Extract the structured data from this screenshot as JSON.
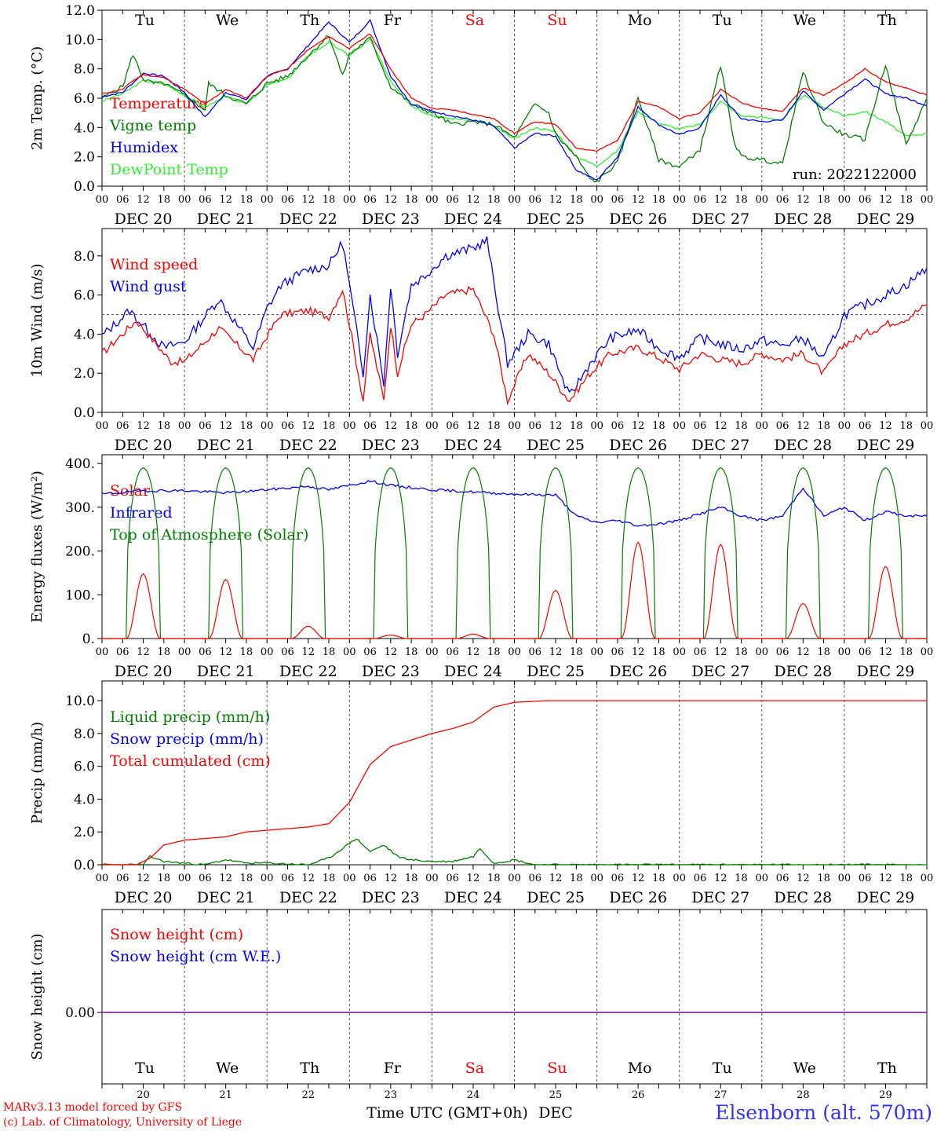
{
  "credits": [
    "MARv3.13 model forced by GFS",
    "(c) Lab. of Climatology, University of Liege"
  ],
  "station": "Elsenborn (alt. 570m)",
  "run_label": "run: 2022122000",
  "colors": {
    "red": "#ff0000",
    "green": "#008000",
    "blue": "#0000ff",
    "lightgreen": "#33ee33",
    "purple": "#8000a0",
    "weekend": "#ff0000"
  },
  "hour_ticks": [
    "00",
    "06",
    "12",
    "18"
  ],
  "last_tick": "00",
  "dates": [
    "DEC 20",
    "DEC 21",
    "DEC 22",
    "DEC 23",
    "DEC 24",
    "DEC 25",
    "DEC 26",
    "DEC 27",
    "DEC 28",
    "DEC 29"
  ],
  "days": [
    "Tu",
    "We",
    "Th",
    "Fr",
    "Sa",
    "Su",
    "Mo",
    "Tu",
    "We",
    "Th"
  ],
  "weekend_days": [
    "Sa",
    "Su"
  ],
  "bottom_day_numbers": [
    "20",
    "21",
    "22",
    "23",
    "24",
    "25",
    "26",
    "27",
    "28",
    "29"
  ],
  "bottom_xlabel": "Time UTC (GMT+0h)",
  "bottom_month": "DEC",
  "chart_data": [
    {
      "type": "line",
      "ylabel": "2m Temp. (°C)",
      "ylim": [
        0,
        12
      ],
      "yticks": [
        "0.0",
        "2.0",
        "4.0",
        "6.0",
        "8.0",
        "10.0",
        "12.0"
      ],
      "x_unit": "hours since Dec 20 00 UTC",
      "series": [
        {
          "name": "Temperature",
          "color": "red",
          "x": [
            0,
            6,
            9,
            12,
            18,
            24,
            30,
            36,
            42,
            48,
            54,
            60,
            66,
            72,
            78,
            84,
            90,
            96,
            102,
            108,
            114,
            120,
            126,
            132,
            138,
            144,
            150,
            156,
            162,
            168,
            174,
            180,
            186,
            192,
            198,
            204,
            210,
            216,
            222,
            228,
            234,
            240
          ],
          "values": [
            6.3,
            6.6,
            7.2,
            7.6,
            7.4,
            6.6,
            5.6,
            6.6,
            6.0,
            7.5,
            8.0,
            9.3,
            10.2,
            9.4,
            10.4,
            8.0,
            6.0,
            5.3,
            5.2,
            4.9,
            4.6,
            3.6,
            4.4,
            4.2,
            2.6,
            2.4,
            3.1,
            5.8,
            5.4,
            4.6,
            5.0,
            6.6,
            5.7,
            5.3,
            5.1,
            6.7,
            6.2,
            7.0,
            8.0,
            7.1,
            6.7,
            6.2
          ]
        },
        {
          "name": "Vigne temp",
          "color": "green",
          "x": [
            0,
            6,
            9,
            12,
            15,
            18,
            24,
            30,
            31,
            36,
            42,
            48,
            54,
            60,
            66,
            70,
            72,
            78,
            84,
            90,
            96,
            102,
            108,
            114,
            120,
            126,
            130,
            132,
            138,
            142,
            144,
            150,
            156,
            162,
            168,
            174,
            180,
            184,
            186,
            192,
            198,
            204,
            210,
            216,
            222,
            228,
            234,
            240
          ],
          "values": [
            6.0,
            6.8,
            9.0,
            7.3,
            7.0,
            7.0,
            6.2,
            5.2,
            7.0,
            6.2,
            5.6,
            7.0,
            7.5,
            8.9,
            10.3,
            7.5,
            9.0,
            10.1,
            6.8,
            5.6,
            5.0,
            4.2,
            4.4,
            4.2,
            3.3,
            5.6,
            5.0,
            3.5,
            2.0,
            0.5,
            0.3,
            1.6,
            6.0,
            1.8,
            1.3,
            2.5,
            8.2,
            3.0,
            2.0,
            1.8,
            1.5,
            7.8,
            4.3,
            3.5,
            3.2,
            8.3,
            2.8,
            6.0
          ]
        },
        {
          "name": "Humidex",
          "color": "blue",
          "x": [
            0,
            6,
            12,
            18,
            24,
            30,
            36,
            42,
            48,
            54,
            60,
            66,
            72,
            78,
            84,
            90,
            96,
            102,
            108,
            114,
            120,
            126,
            132,
            138,
            144,
            150,
            156,
            162,
            168,
            174,
            180,
            186,
            192,
            198,
            204,
            210,
            216,
            222,
            228,
            234,
            240
          ],
          "values": [
            6.1,
            6.4,
            7.7,
            7.5,
            6.4,
            4.7,
            6.4,
            5.9,
            7.5,
            8.0,
            9.6,
            11.2,
            9.8,
            11.3,
            7.5,
            5.6,
            5.1,
            4.8,
            4.5,
            4.1,
            2.6,
            3.6,
            3.4,
            1.1,
            0.4,
            2.0,
            5.4,
            4.2,
            3.5,
            4.0,
            6.2,
            4.6,
            4.4,
            4.5,
            6.5,
            5.2,
            6.3,
            7.3,
            6.3,
            6.0,
            5.5
          ]
        },
        {
          "name": "DewPoint Temp",
          "color": "lightgreen",
          "x": [
            0,
            6,
            12,
            18,
            24,
            30,
            36,
            42,
            48,
            54,
            60,
            66,
            72,
            78,
            84,
            90,
            96,
            102,
            108,
            114,
            120,
            126,
            132,
            138,
            144,
            150,
            156,
            162,
            168,
            174,
            180,
            186,
            192,
            198,
            204,
            210,
            216,
            222,
            228,
            234,
            240
          ],
          "values": [
            5.8,
            6.3,
            7.2,
            7.0,
            6.2,
            5.4,
            6.1,
            5.6,
            6.9,
            7.3,
            8.9,
            9.8,
            8.9,
            10.0,
            7.2,
            5.5,
            4.8,
            4.6,
            4.5,
            4.1,
            3.2,
            4.0,
            3.7,
            2.0,
            1.4,
            2.4,
            5.1,
            4.3,
            3.9,
            4.2,
            5.8,
            4.8,
            4.7,
            4.5,
            6.2,
            5.4,
            4.8,
            5.1,
            4.4,
            3.4,
            3.6
          ]
        }
      ]
    },
    {
      "type": "line",
      "ylabel": "10m Wind (m/s)",
      "ylim": [
        0,
        9
      ],
      "yticks": [
        "0.0",
        "2.0",
        "4.0",
        "6.0",
        "8.0"
      ],
      "ref_line": 5,
      "series": [
        {
          "name": "Wind speed",
          "color": "red",
          "x": [
            0,
            10,
            20,
            24,
            34,
            44,
            48,
            52,
            60,
            66,
            70,
            72,
            76,
            78,
            82,
            84,
            86,
            90,
            94,
            100,
            108,
            114,
            118,
            124,
            130,
            136,
            142,
            148,
            156,
            162,
            168,
            174,
            180,
            186,
            192,
            198,
            204,
            210,
            216,
            222,
            228,
            234,
            240
          ],
          "values": [
            3.0,
            4.7,
            2.6,
            2.6,
            4.3,
            2.7,
            3.9,
            5.0,
            5.2,
            4.9,
            6.3,
            4.5,
            0.6,
            4.0,
            0.6,
            4.5,
            2.0,
            4.5,
            5.0,
            6.0,
            6.3,
            4.0,
            0.6,
            3.0,
            2.0,
            0.6,
            2.0,
            3.0,
            3.3,
            2.8,
            2.2,
            3.0,
            2.7,
            2.5,
            3.0,
            2.7,
            3.0,
            2.0,
            3.5,
            4.0,
            4.5,
            4.8,
            5.5
          ]
        },
        {
          "name": "Wind gust",
          "color": "blue",
          "x": [
            0,
            8,
            18,
            24,
            34,
            44,
            48,
            52,
            60,
            66,
            70,
            72,
            76,
            78,
            82,
            84,
            86,
            90,
            94,
            100,
            108,
            112,
            118,
            124,
            130,
            136,
            142,
            148,
            156,
            162,
            168,
            174,
            180,
            186,
            192,
            198,
            204,
            210,
            216,
            222,
            228,
            234,
            240
          ],
          "values": [
            3.9,
            5.2,
            3.3,
            3.6,
            5.8,
            3.3,
            5.3,
            6.5,
            7.3,
            7.5,
            8.7,
            6.5,
            2.0,
            6.0,
            1.5,
            6.5,
            3.0,
            6.5,
            7.0,
            8.0,
            8.4,
            8.8,
            2.5,
            4.0,
            3.5,
            0.8,
            2.5,
            3.8,
            4.2,
            3.3,
            2.8,
            3.8,
            3.5,
            3.2,
            3.7,
            3.4,
            3.8,
            2.7,
            5.0,
            5.5,
            6.0,
            6.5,
            7.4
          ]
        }
      ]
    },
    {
      "type": "line",
      "ylabel": "Energy fluxes (W/m²)",
      "ylim": [
        0,
        400
      ],
      "yticks": [
        "0.",
        "100.",
        "200.",
        "300.",
        "400."
      ],
      "series": [
        {
          "name": "Solar",
          "color": "red",
          "daily_peaks": [
            148,
            135,
            28,
            8,
            10,
            110,
            220,
            215,
            80,
            165
          ]
        },
        {
          "name": "Infrared",
          "color": "blue",
          "x": [
            0,
            12,
            24,
            36,
            48,
            60,
            66,
            72,
            78,
            84,
            96,
            108,
            120,
            132,
            138,
            144,
            150,
            156,
            162,
            168,
            174,
            180,
            186,
            192,
            198,
            204,
            210,
            216,
            222,
            228,
            234,
            240
          ],
          "values": [
            330,
            338,
            338,
            333,
            340,
            348,
            340,
            350,
            360,
            350,
            340,
            335,
            330,
            328,
            280,
            265,
            270,
            258,
            262,
            270,
            285,
            300,
            280,
            270,
            280,
            345,
            280,
            300,
            270,
            290,
            280,
            280
          ]
        },
        {
          "name": "Top of Atmosphere (Solar)",
          "color": "green",
          "daily_peaks": [
            390,
            390,
            390,
            390,
            390,
            390,
            390,
            390,
            390,
            390
          ]
        }
      ]
    },
    {
      "type": "line",
      "ylabel": "Precip (mm/h)",
      "ylim": [
        0,
        11
      ],
      "yticks": [
        "0.0",
        "2.0",
        "4.0",
        "6.0",
        "8.0",
        "10.0"
      ],
      "series": [
        {
          "name": "Liquid precip (mm/h)",
          "color": "green",
          "x": [
            0,
            12,
            14,
            18,
            24,
            30,
            36,
            42,
            48,
            60,
            66,
            70,
            74,
            78,
            82,
            86,
            90,
            96,
            102,
            108,
            110,
            114,
            120,
            126,
            240
          ],
          "values": [
            0,
            0,
            0.5,
            0.2,
            0.1,
            0.0,
            0.3,
            0.1,
            0.1,
            0.0,
            0.4,
            1.0,
            1.6,
            0.8,
            1.2,
            0.5,
            0.3,
            0.2,
            0.2,
            0.5,
            1.0,
            0.1,
            0.3,
            0.0,
            0.0
          ]
        },
        {
          "name": "Snow precip (mm/h)",
          "color": "blue",
          "x": [
            0,
            240
          ],
          "values": [
            0,
            0
          ]
        },
        {
          "name": "Total cumulated (cm)",
          "color": "red",
          "x": [
            0,
            10,
            14,
            18,
            24,
            30,
            36,
            42,
            48,
            54,
            60,
            66,
            72,
            78,
            84,
            90,
            96,
            102,
            108,
            114,
            120,
            130,
            140,
            160,
            200,
            240
          ],
          "values": [
            0,
            0,
            0.4,
            1.2,
            1.5,
            1.6,
            1.7,
            2.0,
            2.1,
            2.2,
            2.3,
            2.5,
            3.8,
            6.1,
            7.2,
            7.6,
            8.0,
            8.3,
            8.7,
            9.6,
            9.9,
            10.0,
            10.0,
            10.0,
            10.0,
            10.0
          ]
        }
      ]
    },
    {
      "type": "line",
      "ylabel": "Snow height (cm)",
      "yticks": [
        "0.00"
      ],
      "series": [
        {
          "name": "Snow height (cm)",
          "color": "red",
          "x": [
            0,
            240
          ],
          "values": [
            0,
            0
          ]
        },
        {
          "name": "Snow height (cm W.E.)",
          "color": "blue",
          "x": [
            0,
            240
          ],
          "values": [
            0,
            0
          ]
        }
      ]
    }
  ]
}
